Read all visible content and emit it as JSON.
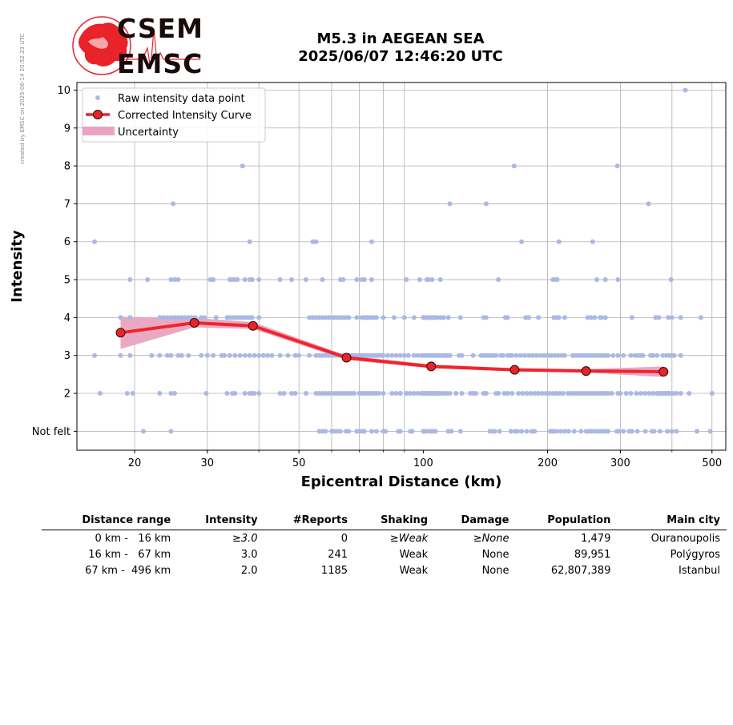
{
  "side_note": "created by EMSC on 2025-06-14 20:52:23 UTC",
  "logo": {
    "line1": "CSEM",
    "line2": "EMSC"
  },
  "title": {
    "line1": "M5.3 in AEGEAN SEA",
    "line2": "2025/06/07 12:46:20 UTC"
  },
  "colors": {
    "raw_points": "#aab8e6",
    "curve": "#f0252c",
    "curve_marker": "#e8232a",
    "uncertainty": "#e8a4c0"
  },
  "chart_data": {
    "type": "scatter",
    "xlabel": "Epicentral Distance (km)",
    "ylabel": "Intensity",
    "x_scale": "log",
    "xlim": [
      14.5,
      540
    ],
    "ylim": [
      0.5,
      10.2
    ],
    "x_ticks": [
      20,
      30,
      50,
      100,
      200,
      300,
      500
    ],
    "y_ticks": [
      {
        "value": 1,
        "label": "Not felt"
      },
      {
        "value": 2,
        "label": "2"
      },
      {
        "value": 3,
        "label": "3"
      },
      {
        "value": 4,
        "label": "4"
      },
      {
        "value": 5,
        "label": "5"
      },
      {
        "value": 6,
        "label": "6"
      },
      {
        "value": 7,
        "label": "7"
      },
      {
        "value": 8,
        "label": "8"
      },
      {
        "value": 9,
        "label": "9"
      },
      {
        "value": 10,
        "label": "10"
      }
    ],
    "grid": true,
    "legend": {
      "position": "top-left",
      "entries": [
        "Raw intensity data point",
        "Corrected Intensity Curve",
        "Uncertainty"
      ]
    },
    "raw_points": {
      "10": [
        431
      ],
      "8": [
        36.5,
        166,
        295
      ],
      "7": [
        24.8,
        116,
        142,
        351
      ],
      "6": [
        16,
        38,
        54,
        55,
        75,
        173,
        213,
        257
      ],
      "5": [
        19.5,
        21.5,
        24.5,
        25,
        25.5,
        30.5,
        31,
        34,
        34.5,
        35,
        35.5,
        37,
        38,
        38.5,
        40,
        45,
        48,
        52,
        57,
        63,
        64,
        69,
        71,
        72,
        75,
        91,
        98,
        102,
        103,
        105,
        110,
        152,
        206,
        209,
        211,
        263,
        276,
        296,
        398
      ],
      "4": [
        18.5,
        19.5,
        23,
        23.5,
        24,
        24.5,
        25,
        25.5,
        26,
        26.5,
        27,
        27.5,
        28,
        29,
        29.5,
        31.5,
        33.5,
        34,
        34.5,
        35,
        35.5,
        36,
        36.5,
        37,
        37.5,
        38,
        38.5,
        40,
        53,
        54,
        55,
        56,
        57,
        58,
        59,
        60,
        61,
        62,
        63,
        64,
        65,
        66,
        69,
        71,
        72,
        73,
        74,
        75,
        76,
        77,
        80,
        85,
        90,
        95,
        100,
        101,
        102,
        103,
        104,
        105,
        106,
        107,
        108,
        110,
        112,
        115,
        123,
        140,
        142,
        158,
        160,
        177,
        180,
        190,
        207,
        210,
        213,
        220,
        250,
        255,
        260,
        268,
        270,
        276,
        320,
        365,
        372,
        392,
        400,
        420,
        470
      ],
      "3": [
        16,
        18.5,
        19.5,
        22,
        23,
        24,
        24.5,
        25.5,
        26,
        27,
        29,
        30,
        31,
        32.5,
        33,
        34,
        35,
        36,
        37,
        38,
        39,
        40,
        41,
        42,
        43,
        45,
        47,
        49,
        50,
        53,
        55,
        56,
        57,
        58,
        59,
        60,
        61,
        62,
        63,
        64,
        65,
        66,
        67,
        68,
        69,
        70,
        71,
        72,
        73,
        74,
        75,
        76,
        77,
        78,
        79,
        80,
        82,
        84,
        86,
        88,
        90,
        92,
        95,
        97,
        99,
        100,
        101,
        102,
        103,
        104,
        105,
        106,
        107,
        108,
        109,
        110,
        111,
        112,
        113,
        114,
        115,
        116,
        122,
        124,
        132,
        138,
        140,
        142,
        144,
        146,
        148,
        150,
        154,
        156,
        160,
        162,
        164,
        168,
        172,
        176,
        180,
        184,
        188,
        192,
        196,
        200,
        204,
        208,
        212,
        216,
        220,
        230,
        232,
        236,
        240,
        244,
        248,
        252,
        256,
        260,
        264,
        268,
        272,
        276,
        280,
        288,
        296,
        305,
        318,
        325,
        330,
        335,
        340,
        355,
        360,
        368,
        380,
        388,
        395,
        400,
        405,
        420
      ],
      "2": [
        16.5,
        19.2,
        19.8,
        23,
        24.5,
        25,
        29.8,
        33.5,
        34.5,
        35,
        37,
        38,
        38.5,
        39,
        40,
        45,
        46,
        48,
        49,
        52,
        55,
        56,
        57,
        58,
        59,
        60,
        61,
        62,
        63,
        64,
        65,
        66,
        67,
        68,
        70,
        71,
        72,
        73,
        74,
        75,
        76,
        77,
        78,
        80,
        84,
        86,
        88,
        91,
        93,
        95,
        97,
        99,
        100,
        101,
        102,
        103,
        104,
        105,
        106,
        107,
        108,
        109,
        110,
        112,
        114,
        116,
        120,
        124,
        130,
        132,
        134,
        140,
        142,
        150,
        152,
        157,
        160,
        164,
        170,
        174,
        178,
        182,
        186,
        190,
        194,
        198,
        202,
        206,
        210,
        214,
        218,
        224,
        228,
        232,
        236,
        240,
        244,
        248,
        252,
        256,
        260,
        264,
        268,
        272,
        276,
        280,
        286,
        296,
        300,
        310,
        318,
        328,
        336,
        344,
        352,
        360,
        368,
        372,
        376,
        380,
        384,
        388,
        392,
        396,
        402,
        410,
        420,
        440,
        500
      ],
      "1": [
        21,
        24.5,
        56,
        57,
        58,
        60,
        61,
        62,
        63,
        65,
        66,
        69,
        70,
        71,
        72,
        75,
        77,
        80,
        81,
        87,
        88,
        93,
        94,
        100,
        101,
        102,
        104,
        105,
        106,
        107,
        115,
        117,
        123,
        145,
        147,
        149,
        153,
        163,
        167,
        169,
        173,
        178,
        183,
        186,
        203,
        205,
        207,
        210,
        215,
        220,
        225,
        232,
        241,
        248,
        252,
        255,
        260,
        264,
        268,
        272,
        276,
        280,
        294,
        298,
        305,
        315,
        320,
        330,
        345,
        358,
        362,
        374,
        390,
        400,
        410,
        460,
        495
      ]
    },
    "series": [
      {
        "name": "Corrected Intensity Curve",
        "x": [
          18.5,
          27.9,
          38.7,
          65.2,
          104.5,
          166.4,
          247.8,
          381.6
        ],
        "y": [
          3.6,
          3.86,
          3.78,
          2.94,
          2.71,
          2.62,
          2.59,
          2.57
        ],
        "uncertainty_lower": [
          3.17,
          3.74,
          3.7,
          2.88,
          2.66,
          2.58,
          2.55,
          2.43
        ],
        "uncertainty_upper": [
          4.02,
          3.99,
          3.88,
          3.0,
          2.76,
          2.66,
          2.64,
          2.71
        ]
      }
    ]
  },
  "table": {
    "headers": [
      "Distance range",
      "Intensity",
      "#Reports",
      "Shaking",
      "Damage",
      "Population",
      "Main city"
    ],
    "rows": [
      {
        "range": "0 km -   16 km",
        "intensity": "≥3.0",
        "reports": "0",
        "shaking": "≥Weak",
        "damage": "≥None",
        "population": "1,479",
        "city": "Ouranoupolis"
      },
      {
        "range": "16 km -   67 km",
        "intensity": "3.0",
        "reports": "241",
        "shaking": "Weak",
        "damage": "None",
        "population": "89,951",
        "city": "Polýgyros"
      },
      {
        "range": "67 km -  496 km",
        "intensity": "2.0",
        "reports": "1185",
        "shaking": "Weak",
        "damage": "None",
        "population": "62,807,389",
        "city": "Istanbul"
      }
    ]
  }
}
